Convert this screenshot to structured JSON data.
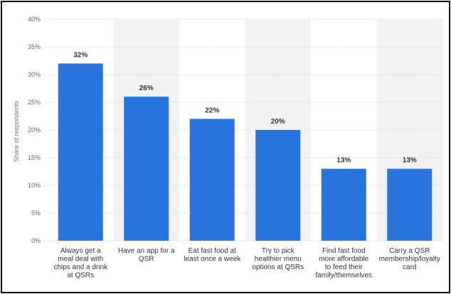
{
  "chart_data": {
    "type": "bar",
    "ylabel": "Share of respondents",
    "ylim": [
      0,
      40
    ],
    "yticks": [
      0,
      5,
      10,
      15,
      20,
      25,
      30,
      35,
      40
    ],
    "ytick_labels": [
      "0%",
      "5%",
      "10%",
      "15%",
      "20%",
      "25%",
      "30%",
      "35%",
      "40%"
    ],
    "categories": [
      [
        "Always get a",
        "meal deal with",
        "chips and a drink",
        "at QSRs"
      ],
      [
        "Have an app for a",
        "QSR"
      ],
      [
        "Eat fast food at",
        "least once a week"
      ],
      [
        "Try to pick",
        "healthier menu",
        "options at QSRs"
      ],
      [
        "Find fast food",
        "more affordable",
        "to feed their",
        "family/themselves"
      ],
      [
        "Carry a QSR",
        "membership/loyalty",
        "card"
      ]
    ],
    "values": [
      32,
      26,
      22,
      20,
      13,
      13
    ],
    "value_labels": [
      "32%",
      "26%",
      "22%",
      "20%",
      "13%",
      "13%"
    ],
    "grid": true,
    "colors": {
      "bar": "#2a74de",
      "band": "#f2f2f2",
      "grid": "#d9d9d9"
    }
  }
}
